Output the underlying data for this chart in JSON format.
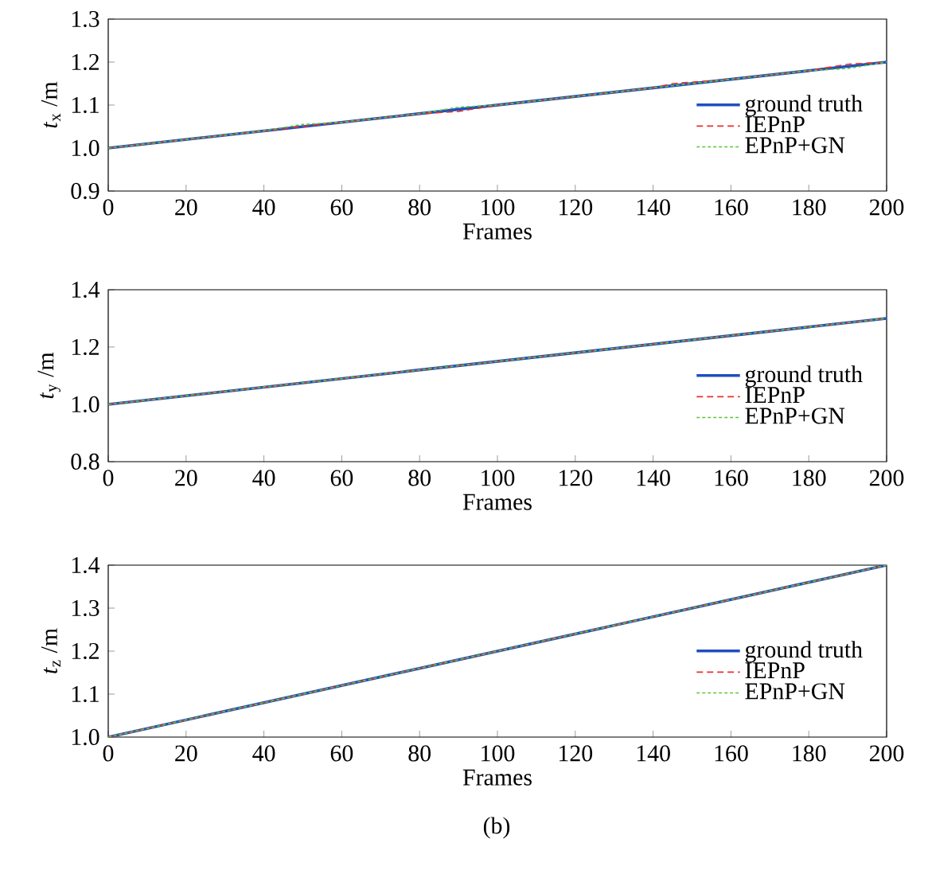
{
  "chart_data": [
    {
      "type": "line",
      "xlabel": "Frames",
      "ylabel": "*t*$_{x}$ /m",
      "xlim": [
        0,
        200
      ],
      "ylim": [
        0.9,
        1.3
      ],
      "xticks": [
        0,
        20,
        40,
        60,
        80,
        100,
        120,
        140,
        160,
        180,
        200
      ],
      "yticks": [
        {
          "value": 0.9,
          "label": "0.9"
        },
        {
          "value": 1.0,
          "label": "1.0"
        },
        {
          "value": 1.1,
          "label": "1.1"
        },
        {
          "value": 1.2,
          "label": "1.2"
        },
        {
          "value": 1.3,
          "label": "1.3"
        }
      ],
      "legend": "right",
      "series": [
        {
          "name": "ground truth",
          "color": "#1f4fbf",
          "line_style": "solid",
          "x": [
            0,
            200
          ],
          "values": [
            1.0,
            1.2
          ]
        },
        {
          "name": "IEPnP",
          "color": "#e8302a",
          "line_style": "dashed",
          "x": [
            0,
            20,
            40,
            60,
            80,
            90,
            100,
            120,
            140,
            145,
            160,
            180,
            190,
            200
          ],
          "values": [
            1.0,
            1.02,
            1.04,
            1.06,
            1.08,
            1.085,
            1.1,
            1.12,
            1.14,
            1.15,
            1.16,
            1.18,
            1.195,
            1.2
          ]
        },
        {
          "name": "EPnP+GN",
          "color": "#5fc43a",
          "line_style": "dotted",
          "x": [
            0,
            20,
            40,
            50,
            60,
            80,
            90,
            100,
            120,
            140,
            160,
            180,
            190,
            200
          ],
          "values": [
            1.0,
            1.02,
            1.04,
            1.055,
            1.06,
            1.08,
            1.095,
            1.1,
            1.12,
            1.14,
            1.16,
            1.18,
            1.185,
            1.2
          ]
        }
      ]
    },
    {
      "type": "line",
      "xlabel": "Frames",
      "ylabel": "*t*$_{y}$ /m",
      "xlim": [
        0,
        200
      ],
      "ylim": [
        0.8,
        1.4
      ],
      "xticks": [
        0,
        20,
        40,
        60,
        80,
        100,
        120,
        140,
        160,
        180,
        200
      ],
      "yticks": [
        {
          "value": 0.8,
          "label": "0.8"
        },
        {
          "value": 1.0,
          "label": "1.0"
        },
        {
          "value": 1.2,
          "label": "1.2"
        },
        {
          "value": 1.4,
          "label": "1.4"
        }
      ],
      "legend": "right",
      "series": [
        {
          "name": "ground truth",
          "color": "#1f4fbf",
          "line_style": "solid",
          "x": [
            0,
            200
          ],
          "values": [
            1.0,
            1.3
          ]
        },
        {
          "name": "IEPnP",
          "color": "#e8302a",
          "line_style": "dashed",
          "x": [
            0,
            20,
            40,
            60,
            80,
            100,
            120,
            140,
            160,
            180,
            200
          ],
          "values": [
            1.0,
            1.03,
            1.06,
            1.09,
            1.12,
            1.15,
            1.18,
            1.21,
            1.24,
            1.27,
            1.3
          ]
        },
        {
          "name": "EPnP+GN",
          "color": "#5fc43a",
          "line_style": "dotted",
          "x": [
            0,
            20,
            40,
            60,
            80,
            100,
            120,
            140,
            160,
            180,
            200
          ],
          "values": [
            1.0,
            1.03,
            1.06,
            1.09,
            1.12,
            1.15,
            1.18,
            1.21,
            1.24,
            1.27,
            1.3
          ]
        }
      ]
    },
    {
      "type": "line",
      "xlabel": "Frames",
      "ylabel": "*t*$_{z}$ /m",
      "xlim": [
        0,
        200
      ],
      "ylim": [
        1.0,
        1.4
      ],
      "xticks": [
        0,
        20,
        40,
        60,
        80,
        100,
        120,
        140,
        160,
        180,
        200
      ],
      "yticks": [
        {
          "value": 1.0,
          "label": "1.0"
        },
        {
          "value": 1.1,
          "label": "1.1"
        },
        {
          "value": 1.2,
          "label": "1.2"
        },
        {
          "value": 1.3,
          "label": "1.3"
        },
        {
          "value": 1.4,
          "label": "1.4"
        }
      ],
      "legend": "right",
      "annotations": [
        "(b)"
      ],
      "series": [
        {
          "name": "ground truth",
          "color": "#1f4fbf",
          "line_style": "solid",
          "x": [
            0,
            200
          ],
          "values": [
            1.0,
            1.4
          ]
        },
        {
          "name": "IEPnP",
          "color": "#e8302a",
          "line_style": "dashed",
          "x": [
            0,
            20,
            40,
            60,
            80,
            100,
            120,
            140,
            160,
            180,
            200
          ],
          "values": [
            1.0,
            1.04,
            1.08,
            1.12,
            1.16,
            1.2,
            1.24,
            1.28,
            1.32,
            1.36,
            1.4
          ]
        },
        {
          "name": "EPnP+GN",
          "color": "#5fc43a",
          "line_style": "dotted",
          "x": [
            0,
            20,
            40,
            60,
            80,
            100,
            120,
            140,
            160,
            180,
            200
          ],
          "values": [
            1.0,
            1.04,
            1.08,
            1.12,
            1.16,
            1.2,
            1.24,
            1.28,
            1.32,
            1.36,
            1.4
          ]
        }
      ]
    }
  ]
}
